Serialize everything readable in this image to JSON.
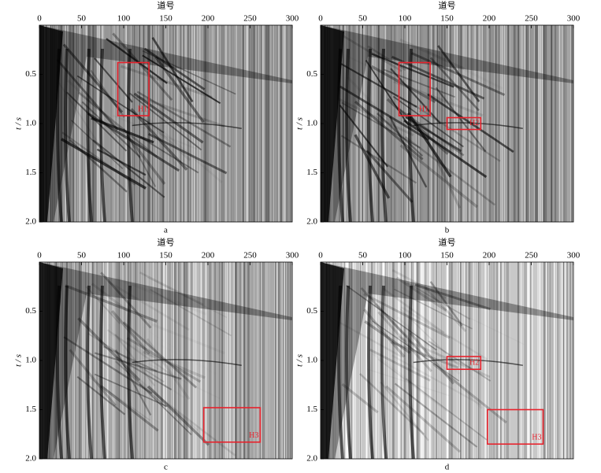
{
  "chart_data": [
    {
      "type": "seismic",
      "caption": "a",
      "xlabel": "道号",
      "ylabel": "t / s",
      "xlim": [
        0,
        300
      ],
      "xticks": [
        0,
        50,
        100,
        150,
        200,
        250,
        300
      ],
      "ylim": [
        2,
        0
      ],
      "yticks": [
        0.5,
        {
          "value": 1,
          "label": "1.0"
        },
        1.5,
        {
          "value": 2,
          "label": "2.0"
        }
      ],
      "boxes": [
        {
          "label": "H1",
          "x": [
            93,
            130
          ],
          "t": [
            0.38,
            0.92
          ]
        }
      ]
    },
    {
      "type": "seismic",
      "caption": "b",
      "xlabel": "道号",
      "ylabel": "t / s",
      "xlim": [
        0,
        300
      ],
      "xticks": [
        0,
        50,
        100,
        150,
        200,
        250,
        300
      ],
      "ylim": [
        2,
        0
      ],
      "yticks": [
        0.5,
        {
          "value": 1,
          "label": "1.0"
        },
        1.5,
        {
          "value": 2,
          "label": "2.0"
        }
      ],
      "boxes": [
        {
          "label": "H1",
          "x": [
            93,
            130
          ],
          "t": [
            0.38,
            0.92
          ]
        },
        {
          "label": "H2",
          "x": [
            150,
            190
          ],
          "t": [
            0.94,
            1.06
          ]
        }
      ]
    },
    {
      "type": "seismic",
      "caption": "c",
      "xlabel": "道号",
      "ylabel": "t / s",
      "xlim": [
        0,
        300
      ],
      "xticks": [
        0,
        50,
        100,
        150,
        200,
        250,
        300
      ],
      "ylim": [
        2,
        0
      ],
      "yticks": [
        0.5,
        {
          "value": 1,
          "label": "1.0"
        },
        1.5,
        {
          "value": 2,
          "label": "2.0"
        }
      ],
      "boxes": [
        {
          "label": "H3",
          "x": [
            195,
            262
          ],
          "t": [
            1.48,
            1.83
          ]
        }
      ]
    },
    {
      "type": "seismic",
      "caption": "d",
      "xlabel": "道号",
      "ylabel": "t / s",
      "xlim": [
        0,
        300
      ],
      "xticks": [
        0,
        50,
        100,
        150,
        200,
        250,
        300
      ],
      "ylim": [
        2,
        0
      ],
      "yticks": [
        0.5,
        {
          "value": 1,
          "label": "1.0"
        },
        1.5,
        {
          "value": 2,
          "label": "2.0"
        }
      ],
      "boxes": [
        {
          "label": "H2",
          "x": [
            150,
            190
          ],
          "t": [
            0.96,
            1.09
          ]
        },
        {
          "label": "H3",
          "x": [
            198,
            264
          ],
          "t": [
            1.5,
            1.85
          ]
        }
      ]
    }
  ]
}
